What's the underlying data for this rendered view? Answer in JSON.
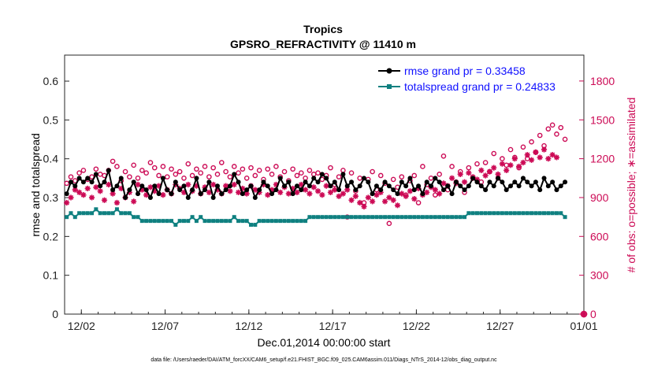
{
  "chart_data": {
    "type": "line",
    "title": "Tropics",
    "subtitle": "GPSRO_REFRACTIVITY @ 11410 m",
    "xlabel": "Dec.01,2014 00:00:00 start",
    "ylabel": "rmse and totalspread",
    "ylabel_right": "# of obs: o=possible; ∗=assimilated",
    "xlim": [
      0,
      31
    ],
    "ylim": [
      0,
      0.667
    ],
    "ylim_right": [
      0,
      2000
    ],
    "x_ticks": [
      {
        "x": 1,
        "label": "12/02"
      },
      {
        "x": 6,
        "label": "12/07"
      },
      {
        "x": 11,
        "label": "12/12"
      },
      {
        "x": 16,
        "label": "12/17"
      },
      {
        "x": 21,
        "label": "12/22"
      },
      {
        "x": 26,
        "label": "12/27"
      },
      {
        "x": 31,
        "label": "01/01"
      }
    ],
    "y_ticks": [
      "0",
      "0.1",
      "0.2",
      "0.3",
      "0.4",
      "0.5",
      "0.6"
    ],
    "y_tick_values": [
      0,
      0.1,
      0.2,
      0.3,
      0.4,
      0.5,
      0.6
    ],
    "y_ticks_right": [
      "0",
      "300",
      "600",
      "900",
      "1200",
      "1500",
      "1800"
    ],
    "y_tick_values_right": [
      0,
      300,
      600,
      900,
      1200,
      1500,
      1800
    ],
    "legend": [
      {
        "label": "rmse grand pr = 0.33458",
        "color": "#000000"
      },
      {
        "label": "totalspread grand pr = 0.24833",
        "color": "#0f8080"
      }
    ],
    "series": [
      {
        "name": "rmse",
        "axis": "left",
        "color": "#000000",
        "x0": 0.125,
        "dx": 0.25,
        "values": [
          0.31,
          0.34,
          0.33,
          0.35,
          0.34,
          0.35,
          0.34,
          0.36,
          0.33,
          0.34,
          0.37,
          0.32,
          0.33,
          0.35,
          0.3,
          0.32,
          0.34,
          0.31,
          0.33,
          0.32,
          0.3,
          0.33,
          0.31,
          0.35,
          0.32,
          0.31,
          0.34,
          0.32,
          0.33,
          0.3,
          0.32,
          0.35,
          0.31,
          0.32,
          0.34,
          0.3,
          0.33,
          0.31,
          0.32,
          0.33,
          0.36,
          0.34,
          0.31,
          0.32,
          0.33,
          0.3,
          0.32,
          0.34,
          0.33,
          0.31,
          0.32,
          0.35,
          0.33,
          0.34,
          0.31,
          0.33,
          0.32,
          0.34,
          0.33,
          0.35,
          0.34,
          0.36,
          0.35,
          0.33,
          0.34,
          0.32,
          0.36,
          0.33,
          0.34,
          0.32,
          0.33,
          0.35,
          0.34,
          0.31,
          0.33,
          0.32,
          0.34,
          0.33,
          0.32,
          0.31,
          0.34,
          0.33,
          0.35,
          0.32,
          0.33,
          0.31,
          0.34,
          0.33,
          0.35,
          0.34,
          0.32,
          0.33,
          0.31,
          0.34,
          0.33,
          0.32,
          0.33,
          0.35,
          0.34,
          0.33,
          0.32,
          0.34,
          0.33,
          0.35,
          0.34,
          0.32,
          0.33,
          0.34,
          0.33,
          0.35,
          0.34,
          0.33,
          0.34,
          0.32,
          0.35,
          0.33,
          0.34,
          0.32,
          0.33,
          0.34
        ]
      },
      {
        "name": "totalspread",
        "axis": "left",
        "color": "#0f8080",
        "x0": 0.125,
        "dx": 0.25,
        "values": [
          0.25,
          0.26,
          0.25,
          0.26,
          0.26,
          0.26,
          0.26,
          0.27,
          0.26,
          0.26,
          0.26,
          0.26,
          0.27,
          0.26,
          0.26,
          0.26,
          0.25,
          0.25,
          0.24,
          0.24,
          0.24,
          0.24,
          0.24,
          0.24,
          0.24,
          0.24,
          0.23,
          0.24,
          0.24,
          0.24,
          0.25,
          0.24,
          0.25,
          0.24,
          0.24,
          0.24,
          0.24,
          0.24,
          0.24,
          0.24,
          0.25,
          0.24,
          0.24,
          0.24,
          0.23,
          0.23,
          0.24,
          0.24,
          0.24,
          0.24,
          0.24,
          0.24,
          0.24,
          0.24,
          0.24,
          0.24,
          0.24,
          0.24,
          0.25,
          0.25,
          0.25,
          0.25,
          0.25,
          0.25,
          0.25,
          0.25,
          0.25,
          0.25,
          0.25,
          0.25,
          0.25,
          0.25,
          0.25,
          0.25,
          0.25,
          0.25,
          0.25,
          0.25,
          0.25,
          0.25,
          0.25,
          0.25,
          0.25,
          0.25,
          0.25,
          0.25,
          0.25,
          0.25,
          0.25,
          0.25,
          0.25,
          0.25,
          0.25,
          0.25,
          0.25,
          0.25,
          0.26,
          0.26,
          0.26,
          0.26,
          0.26,
          0.26,
          0.26,
          0.26,
          0.26,
          0.26,
          0.26,
          0.26,
          0.26,
          0.26,
          0.26,
          0.26,
          0.26,
          0.26,
          0.26,
          0.26,
          0.26,
          0.26,
          0.26,
          0.25
        ]
      },
      {
        "name": "possible",
        "axis": "right",
        "marker": "circle",
        "color": "#cc0a55",
        "x0": 0.125,
        "dx": 0.25,
        "values": [
          1010,
          1060,
          1030,
          1090,
          1110,
          1040,
          1060,
          1120,
          1080,
          1070,
          1110,
          1180,
          1140,
          1030,
          1100,
          1060,
          1150,
          1050,
          1110,
          1090,
          1170,
          1130,
          1070,
          1140,
          1060,
          1120,
          1080,
          1100,
          1050,
          1160,
          1070,
          1120,
          1090,
          1140,
          1060,
          1130,
          1080,
          1170,
          1100,
          1060,
          1140,
          1090,
          1120,
          1050,
          1130,
          1070,
          1110,
          1040,
          1120,
          1080,
          1140,
          1060,
          1100,
          1030,
          1120,
          1070,
          1090,
          1050,
          1110,
          1080,
          1090,
          1040,
          1070,
          1130,
          1000,
          1060,
          1110,
          750,
          1090,
          950,
          1050,
          860,
          1040,
          1100,
          960,
          1070,
          1010,
          700,
          1040,
          980,
          1060,
          920,
          1030,
          1070,
          860,
          1140,
          1000,
          1050,
          920,
          1080,
          1220,
          960,
          1140,
          1020,
          1100,
          940,
          1130,
          1060,
          1160,
          1020,
          1170,
          1100,
          1240,
          1050,
          1200,
          1150,
          1270,
          1210,
          1130,
          1290,
          1200,
          1330,
          1250,
          1380,
          1300,
          1430,
          1460,
          1390,
          1440,
          1350
        ]
      },
      {
        "name": "assimilated",
        "axis": "right",
        "marker": "star",
        "color": "#cc0a55",
        "x0": 0.125,
        "dx": 0.25,
        "values": [
          860,
          900,
          960,
          940,
          920,
          970,
          900,
          980,
          950,
          880,
          1000,
          930,
          860,
          970,
          900,
          940,
          870,
          1000,
          960,
          920,
          980,
          950,
          990,
          920,
          960,
          930,
          1000,
          970,
          940,
          1000,
          950,
          990,
          930,
          980,
          940,
          1000,
          960,
          930,
          990,
          950,
          1000,
          940,
          970,
          930,
          990,
          960,
          940,
          1000,
          920,
          960,
          1000,
          940,
          980,
          930,
          970,
          940,
          1000,
          960,
          930,
          980,
          950,
          920,
          990,
          940,
          960,
          910,
          930,
          960,
          880,
          910,
          860,
          830,
          900,
          870,
          920,
          940,
          870,
          900,
          880,
          840,
          930,
          910,
          950,
          890,
          970,
          920,
          940,
          980,
          960,
          930,
          1010,
          990,
          1050,
          1010,
          1080,
          1020,
          1090,
          1050,
          1040,
          1110,
          1070,
          1100,
          1130,
          1080,
          1160,
          1110,
          1150,
          1200,
          1140,
          1170,
          1230,
          1190,
          1250,
          1210,
          1270,
          1200,
          1230,
          1210
        ]
      }
    ]
  },
  "footer": "data file: /Users/raeder/DAI/ATM_forcXX/CAM6_setup/f.e21.FHIST_BGC.f09_025.CAM6assim.011/Diags_NTrS_2014-12/obs_diag_output.nc"
}
